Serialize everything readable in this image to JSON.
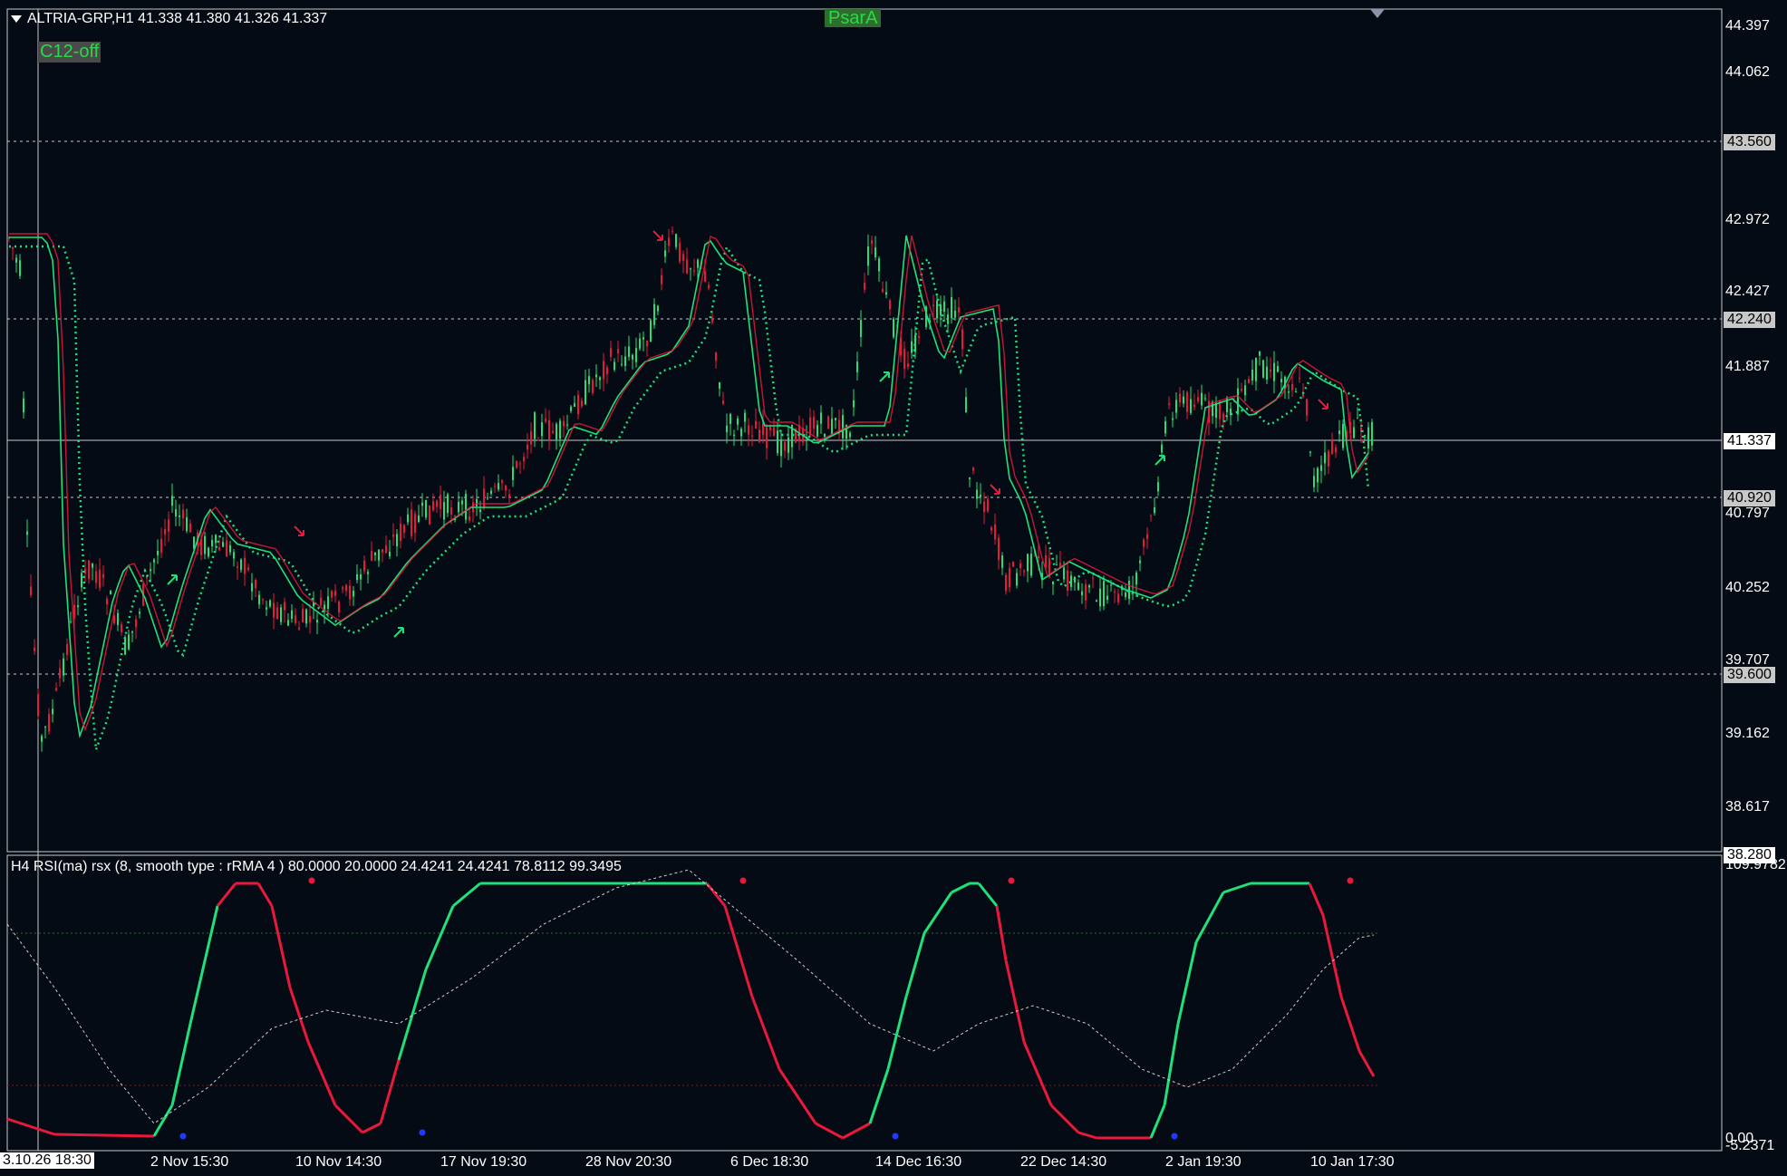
{
  "header": {
    "symbol_line": "ALTRIA-GRP,H1  41.338 41.380 41.326 41.337",
    "c12_label": "C12-off",
    "psar_label": "PsarA"
  },
  "oscillator": {
    "header": "H4 RSI(ma) rsx (8, smooth type : rRMA  4 ) 80.0000 20.0000 24.4241 24.4241 78.8112 99.3495",
    "scale_top": "109.9782",
    "scale_bottom": "-5.2371",
    "zero_label": "0.00"
  },
  "price_axis": {
    "ticks": [
      "44.397",
      "44.062",
      "42.972",
      "42.427",
      "41.887",
      "40.797",
      "40.252",
      "39.707",
      "39.162",
      "38.617"
    ],
    "levels": [
      "43.560",
      "42.240",
      "40.920",
      "39.600"
    ],
    "current": "41.337",
    "bottom": "38.280"
  },
  "time_axis": {
    "start": "3.10.26 18:30",
    "ticks": [
      "2 Nov 15:30",
      "10 Nov 14:30",
      "17 Nov 19:30",
      "28 Nov 20:30",
      "6 Dec 18:30",
      "14 Dec 16:30",
      "22 Dec 14:30",
      "2 Jan 19:30",
      "10 Jan 17:30"
    ]
  },
  "colors": {
    "background": "#050b14",
    "bull": "#1fe07a",
    "bear": "#e8193c",
    "grid": "#aab2c0"
  }
}
